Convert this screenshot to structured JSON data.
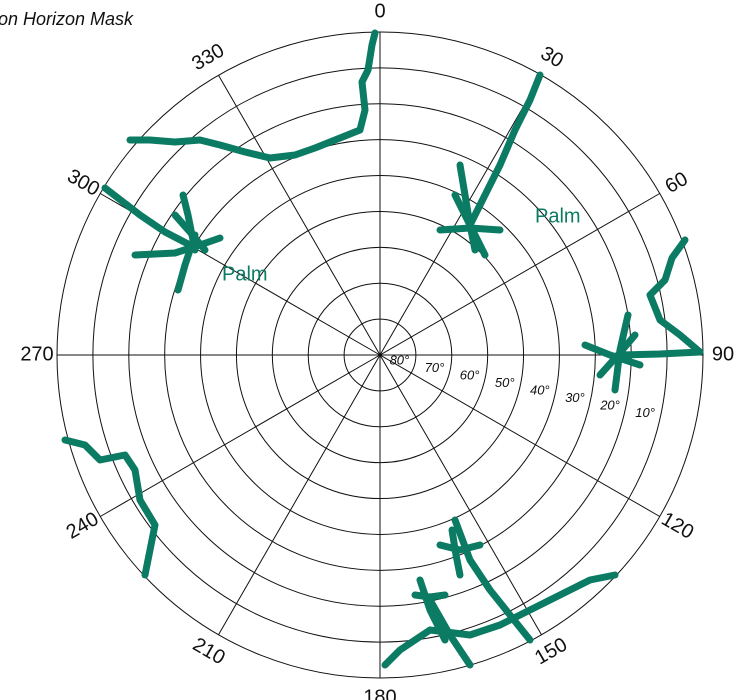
{
  "title": "on Horizon Mask",
  "azimuth_labels": [
    "0",
    "30",
    "60",
    "90",
    "120",
    "150",
    "180",
    "210",
    "240",
    "270",
    "300",
    "330"
  ],
  "elevation_labels": [
    "10°",
    "20°",
    "30°",
    "40°",
    "50°",
    "60°",
    "70°",
    "80°"
  ],
  "obstructions": [
    {
      "label": "Palm"
    },
    {
      "label": "Palm"
    }
  ]
}
